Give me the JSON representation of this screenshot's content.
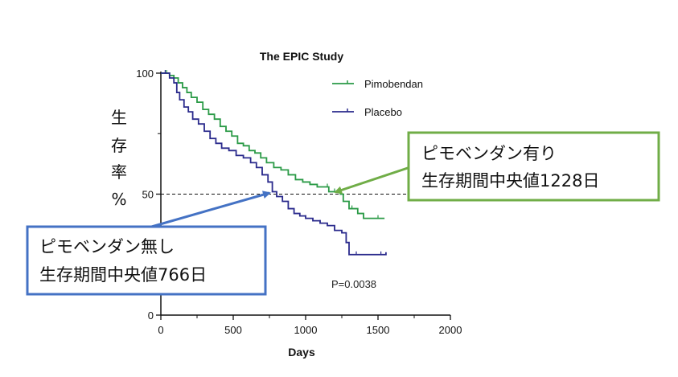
{
  "chart_data": {
    "type": "line",
    "title": "The EPIC Study",
    "xlabel": "Days",
    "ylabel_chars": [
      "生",
      "存",
      "率",
      "%"
    ],
    "xlim": [
      0,
      2000
    ],
    "ylim": [
      0,
      100
    ],
    "x_ticks": [
      0,
      500,
      1000,
      1500,
      2000
    ],
    "y_ticks": [
      0,
      50,
      100
    ],
    "reference_line": {
      "y": 50,
      "style": "dashed"
    },
    "annotation": "P=0.0038",
    "series": [
      {
        "name": "Pimobendan",
        "color": "#2a9a46",
        "step": true,
        "points": [
          [
            0,
            100
          ],
          [
            40,
            100
          ],
          [
            60,
            99
          ],
          [
            90,
            98
          ],
          [
            120,
            96
          ],
          [
            150,
            94
          ],
          [
            180,
            92
          ],
          [
            210,
            90
          ],
          [
            250,
            88
          ],
          [
            290,
            85
          ],
          [
            330,
            83
          ],
          [
            370,
            81
          ],
          [
            410,
            78
          ],
          [
            450,
            76
          ],
          [
            490,
            74
          ],
          [
            530,
            71
          ],
          [
            570,
            70
          ],
          [
            610,
            68
          ],
          [
            650,
            67
          ],
          [
            690,
            65
          ],
          [
            730,
            63
          ],
          [
            780,
            61
          ],
          [
            830,
            60
          ],
          [
            880,
            58
          ],
          [
            930,
            56
          ],
          [
            980,
            55
          ],
          [
            1030,
            54
          ],
          [
            1080,
            53
          ],
          [
            1120,
            53
          ],
          [
            1150,
            53
          ],
          [
            1160,
            51
          ],
          [
            1200,
            51
          ],
          [
            1240,
            50
          ],
          [
            1260,
            47
          ],
          [
            1300,
            44
          ],
          [
            1320,
            44
          ],
          [
            1360,
            42
          ],
          [
            1400,
            40
          ],
          [
            1450,
            40
          ],
          [
            1500,
            40
          ],
          [
            1545,
            40
          ]
        ]
      },
      {
        "name": "Placebo",
        "color": "#2a2a8c",
        "step": true,
        "points": [
          [
            0,
            100
          ],
          [
            30,
            100
          ],
          [
            60,
            98
          ],
          [
            90,
            96
          ],
          [
            110,
            92
          ],
          [
            130,
            89
          ],
          [
            160,
            86
          ],
          [
            190,
            84
          ],
          [
            220,
            81
          ],
          [
            260,
            79
          ],
          [
            300,
            76
          ],
          [
            340,
            73
          ],
          [
            380,
            71
          ],
          [
            420,
            69
          ],
          [
            470,
            68
          ],
          [
            520,
            66
          ],
          [
            570,
            65
          ],
          [
            620,
            63
          ],
          [
            660,
            61
          ],
          [
            700,
            58
          ],
          [
            740,
            55
          ],
          [
            770,
            51
          ],
          [
            800,
            49
          ],
          [
            840,
            47
          ],
          [
            880,
            44
          ],
          [
            920,
            42
          ],
          [
            960,
            41
          ],
          [
            1000,
            40
          ],
          [
            1050,
            39
          ],
          [
            1100,
            38
          ],
          [
            1150,
            37
          ],
          [
            1200,
            35
          ],
          [
            1250,
            34
          ],
          [
            1280,
            30
          ],
          [
            1300,
            25
          ],
          [
            1350,
            25
          ],
          [
            1450,
            25
          ],
          [
            1520,
            25
          ],
          [
            1555,
            26
          ]
        ]
      }
    ],
    "callouts": [
      {
        "lines": [
          "ピモベンダン有り",
          "生存期間中央値1228日"
        ],
        "border_color": "#70ad47",
        "arrow_color": "#70ad47",
        "target": {
          "x": 1228,
          "y": 50
        }
      },
      {
        "lines": [
          "ピモベンダン無し",
          "生存期間中央値766日"
        ],
        "border_color": "#4472c4",
        "arrow_color": "#4472c4",
        "target": {
          "x": 766,
          "y": 50
        }
      }
    ]
  }
}
